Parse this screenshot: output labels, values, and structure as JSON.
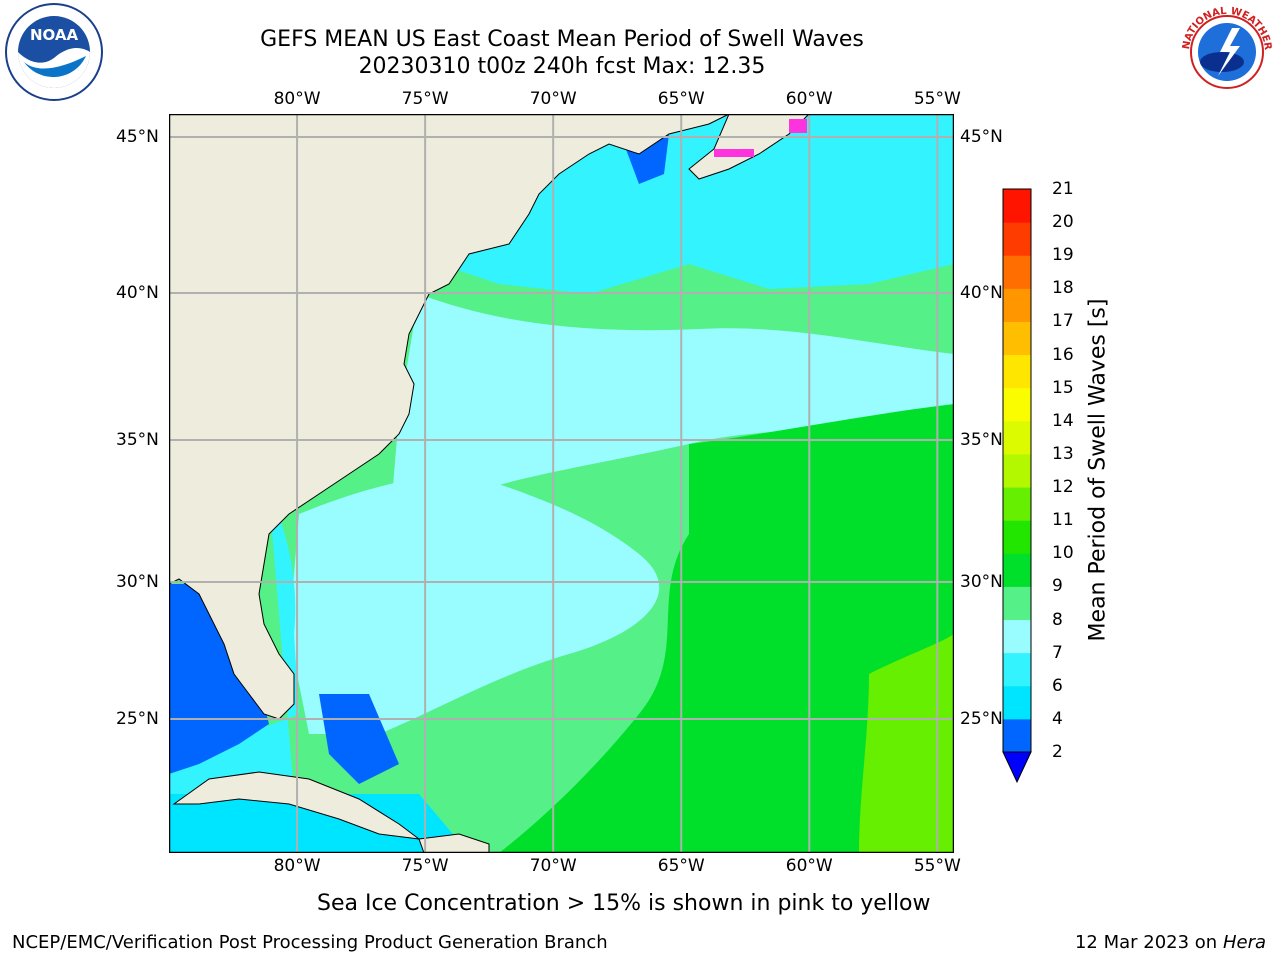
{
  "title": {
    "line1": "GEFS MEAN US East Coast Mean Period of Swell Waves",
    "line2": "20230310 t00z 240h fcst   Max: 12.35"
  },
  "logos": {
    "left": {
      "icon": "noaa-logo",
      "text": "NOAA"
    },
    "right": {
      "icon": "national-weather-service-logo",
      "text": "NATIONAL WEATHER SERVICE"
    }
  },
  "map": {
    "region": "US East Coast",
    "lon_ticks": [
      "80°W",
      "75°W",
      "70°W",
      "65°W",
      "60°W",
      "55°W"
    ],
    "lat_ticks": [
      "45°N",
      "40°N",
      "35°N",
      "30°N",
      "25°N"
    ],
    "lon_values": [
      -80,
      -75,
      -70,
      -65,
      -60,
      -55
    ],
    "lat_values": [
      45,
      40,
      35,
      30,
      25
    ],
    "land_color": "#eeecdc",
    "grid_color": "#b0b0b0",
    "coast_color": "#000000"
  },
  "colorbar": {
    "title": "Mean Period of Swell Waves [s]",
    "labels": [
      "2",
      "4",
      "6",
      "7",
      "8",
      "9",
      "10",
      "11",
      "12",
      "13",
      "14",
      "15",
      "16",
      "17",
      "18",
      "19",
      "20",
      "21"
    ],
    "colors": [
      "#0066ff",
      "#00e5ff",
      "#33f3ff",
      "#99fcff",
      "#55f088",
      "#00e02a",
      "#22e600",
      "#66ef00",
      "#b4f800",
      "#dcfb00",
      "#fafc00",
      "#ffe600",
      "#ffbe00",
      "#ff9600",
      "#ff6e00",
      "#ff3c00",
      "#ff1400"
    ],
    "extend_color": "#0000ff"
  },
  "footnote": "Sea Ice Concentration > 15% is shown in pink to yellow",
  "footer": {
    "left": "NCEP/EMC/Verification Post Processing Product Generation Branch",
    "right_date": "12 Mar 2023 on",
    "right_host": "Hera"
  }
}
